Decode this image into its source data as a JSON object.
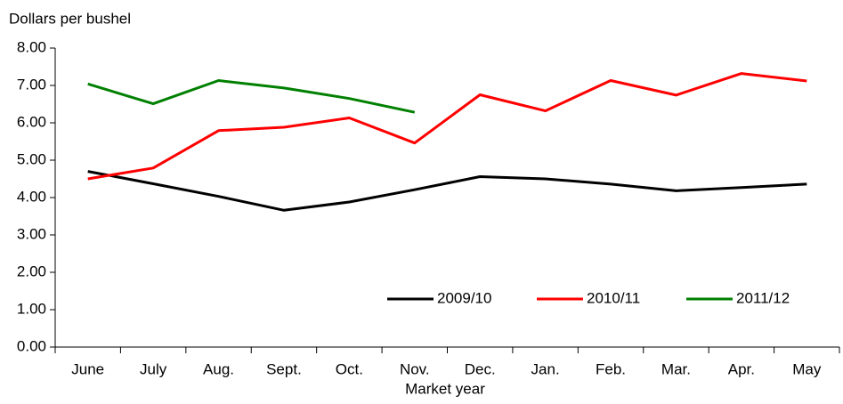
{
  "chart_data": {
    "type": "line",
    "y_label": "Dollars per bushel",
    "x_label": "Market year",
    "categories": [
      "June",
      "July",
      "Aug.",
      "Sept.",
      "Oct.",
      "Nov.",
      "Dec.",
      "Jan.",
      "Feb.",
      "Mar.",
      "Apr.",
      "May"
    ],
    "series": [
      {
        "name": "2009/10",
        "color": "#000000",
        "values": [
          4.7,
          4.37,
          4.03,
          3.66,
          3.88,
          4.21,
          4.56,
          4.5,
          4.36,
          4.18,
          4.27,
          4.36
        ]
      },
      {
        "name": "2010/11",
        "color": "#ff0000",
        "values": [
          4.5,
          4.79,
          5.79,
          5.88,
          6.13,
          5.46,
          6.75,
          6.32,
          7.13,
          6.74,
          7.32,
          7.12
        ]
      },
      {
        "name": "2011/12",
        "color": "#008000",
        "values": [
          7.04,
          6.51,
          7.13,
          6.93,
          6.65,
          6.28,
          null,
          null,
          null,
          null,
          null,
          null
        ]
      }
    ],
    "ylim": [
      0,
      8
    ],
    "yticks": [
      {
        "value": 0,
        "label": "0.00"
      },
      {
        "value": 1,
        "label": "1.00"
      },
      {
        "value": 2,
        "label": "2.00"
      },
      {
        "value": 3,
        "label": "3.00"
      },
      {
        "value": 4,
        "label": "4.00"
      },
      {
        "value": 5,
        "label": "5.00"
      },
      {
        "value": 6,
        "label": "6.00"
      },
      {
        "value": 7,
        "label": "7.00"
      },
      {
        "value": 8,
        "label": "8.00"
      }
    ],
    "grid": false,
    "legend": "lower-right"
  }
}
